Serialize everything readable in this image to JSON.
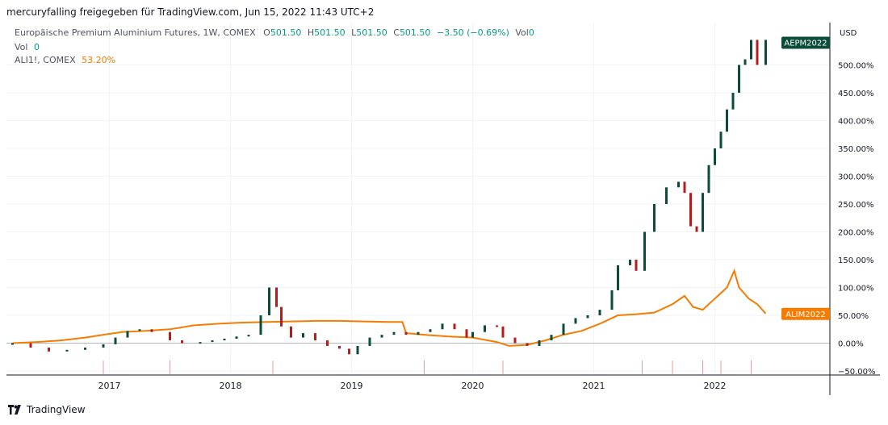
{
  "header": {
    "text": "mercuryfalling freigegeben für TradingView.com, Jun 15, 2022 11:43 UTC+2"
  },
  "legend": {
    "main": {
      "name": "Europäische Premium Aluminium Futures, 1W, COMEX",
      "o_label": "O",
      "o": "501.50",
      "h_label": "H",
      "h": "501.50",
      "l_label": "L",
      "l": "501.50",
      "c_label": "C",
      "c": "501.50",
      "change": "−3.50 (−0.69%)",
      "vol_label": "Vol",
      "vol": "0"
    },
    "vol_row": {
      "label": "Vol",
      "value": "0"
    },
    "compare": {
      "name": "ALI1!, COMEX",
      "value": "53.20%"
    }
  },
  "footer": {
    "brand": "TradingView"
  },
  "colors": {
    "up": "#0b4d3a",
    "down": "#b71c1c",
    "line": "#f57c00",
    "grid": "#f0f3fa",
    "axis": "#131722"
  },
  "chart_data": {
    "type": "candlestick+line",
    "currency_label": "USD",
    "y_unit": "% change",
    "ylim": [
      -50,
      550
    ],
    "y_ticks": [
      "500.00%",
      "450.00%",
      "400.00%",
      "350.00%",
      "300.00%",
      "250.00%",
      "200.00%",
      "150.00%",
      "100.00%",
      "50.00%",
      "0.00%",
      "−50.00%"
    ],
    "y_tick_values": [
      500,
      450,
      400,
      350,
      300,
      250,
      200,
      150,
      100,
      50,
      0,
      -50
    ],
    "x_ticks": [
      "2017",
      "2018",
      "2019",
      "2020",
      "2021",
      "2022"
    ],
    "x_tick_years": [
      2017,
      2018,
      2019,
      2020,
      2021,
      2022
    ],
    "x_range_years": [
      2016.15,
      2022.95
    ],
    "series": [
      {
        "name": "AEPM2022",
        "label": "AEPM2022",
        "kind": "candles",
        "points": [
          [
            2016.2,
            0
          ],
          [
            2016.35,
            -8
          ],
          [
            2016.5,
            -15
          ],
          [
            2016.65,
            -12
          ],
          [
            2016.8,
            -8
          ],
          [
            2016.95,
            -2
          ],
          [
            2017.05,
            10
          ],
          [
            2017.15,
            22
          ],
          [
            2017.25,
            25
          ],
          [
            2017.35,
            20
          ],
          [
            2017.5,
            5
          ],
          [
            2017.6,
            0
          ],
          [
            2017.75,
            2
          ],
          [
            2017.85,
            5
          ],
          [
            2017.95,
            8
          ],
          [
            2018.05,
            12
          ],
          [
            2018.15,
            15
          ],
          [
            2018.25,
            50
          ],
          [
            2018.32,
            100
          ],
          [
            2018.38,
            65
          ],
          [
            2018.42,
            30
          ],
          [
            2018.5,
            10
          ],
          [
            2018.6,
            18
          ],
          [
            2018.7,
            5
          ],
          [
            2018.8,
            -5
          ],
          [
            2018.9,
            -10
          ],
          [
            2018.98,
            -20
          ],
          [
            2019.05,
            -5
          ],
          [
            2019.15,
            10
          ],
          [
            2019.25,
            15
          ],
          [
            2019.35,
            20
          ],
          [
            2019.45,
            15
          ],
          [
            2019.55,
            20
          ],
          [
            2019.65,
            25
          ],
          [
            2019.75,
            35
          ],
          [
            2019.85,
            25
          ],
          [
            2019.95,
            10
          ],
          [
            2020.0,
            20
          ],
          [
            2020.1,
            32
          ],
          [
            2020.2,
            30
          ],
          [
            2020.25,
            10
          ],
          [
            2020.35,
            0
          ],
          [
            2020.45,
            -5
          ],
          [
            2020.55,
            5
          ],
          [
            2020.65,
            15
          ],
          [
            2020.75,
            35
          ],
          [
            2020.85,
            45
          ],
          [
            2020.95,
            50
          ],
          [
            2021.05,
            60
          ],
          [
            2021.15,
            95
          ],
          [
            2021.2,
            140
          ],
          [
            2021.3,
            150
          ],
          [
            2021.35,
            130
          ],
          [
            2021.42,
            200
          ],
          [
            2021.5,
            250
          ],
          [
            2021.6,
            280
          ],
          [
            2021.7,
            290
          ],
          [
            2021.75,
            270
          ],
          [
            2021.8,
            210
          ],
          [
            2021.85,
            200
          ],
          [
            2021.9,
            270
          ],
          [
            2021.95,
            320
          ],
          [
            2022.0,
            350
          ],
          [
            2022.05,
            380
          ],
          [
            2022.1,
            420
          ],
          [
            2022.15,
            450
          ],
          [
            2022.2,
            500
          ],
          [
            2022.25,
            510
          ],
          [
            2022.3,
            545
          ],
          [
            2022.35,
            500
          ],
          [
            2022.42,
            545
          ]
        ]
      },
      {
        "name": "ALIM2022",
        "label": "ALIM2022",
        "kind": "line",
        "points": [
          [
            2016.2,
            0
          ],
          [
            2016.4,
            2
          ],
          [
            2016.6,
            5
          ],
          [
            2016.8,
            10
          ],
          [
            2016.95,
            15
          ],
          [
            2017.1,
            20
          ],
          [
            2017.3,
            22
          ],
          [
            2017.5,
            25
          ],
          [
            2017.7,
            32
          ],
          [
            2017.9,
            35
          ],
          [
            2018.1,
            37
          ],
          [
            2018.3,
            38
          ],
          [
            2018.5,
            39
          ],
          [
            2018.7,
            40
          ],
          [
            2018.9,
            40
          ],
          [
            2019.1,
            39
          ],
          [
            2019.3,
            38
          ],
          [
            2019.42,
            38
          ],
          [
            2019.45,
            18
          ],
          [
            2019.6,
            15
          ],
          [
            2019.8,
            12
          ],
          [
            2020.0,
            10
          ],
          [
            2020.2,
            2
          ],
          [
            2020.3,
            -5
          ],
          [
            2020.45,
            -3
          ],
          [
            2020.6,
            5
          ],
          [
            2020.75,
            15
          ],
          [
            2020.9,
            22
          ],
          [
            2021.05,
            35
          ],
          [
            2021.2,
            50
          ],
          [
            2021.35,
            52
          ],
          [
            2021.5,
            55
          ],
          [
            2021.65,
            70
          ],
          [
            2021.75,
            85
          ],
          [
            2021.82,
            65
          ],
          [
            2021.9,
            60
          ],
          [
            2022.0,
            80
          ],
          [
            2022.1,
            100
          ],
          [
            2022.16,
            130
          ],
          [
            2022.2,
            100
          ],
          [
            2022.28,
            80
          ],
          [
            2022.35,
            70
          ],
          [
            2022.42,
            53.2
          ]
        ]
      }
    ],
    "volume_spikes_years": [
      2016.95,
      2017.5,
      2018.35,
      2019.6,
      2020.25,
      2021.4,
      2021.65,
      2021.9,
      2022.05,
      2022.3
    ]
  }
}
